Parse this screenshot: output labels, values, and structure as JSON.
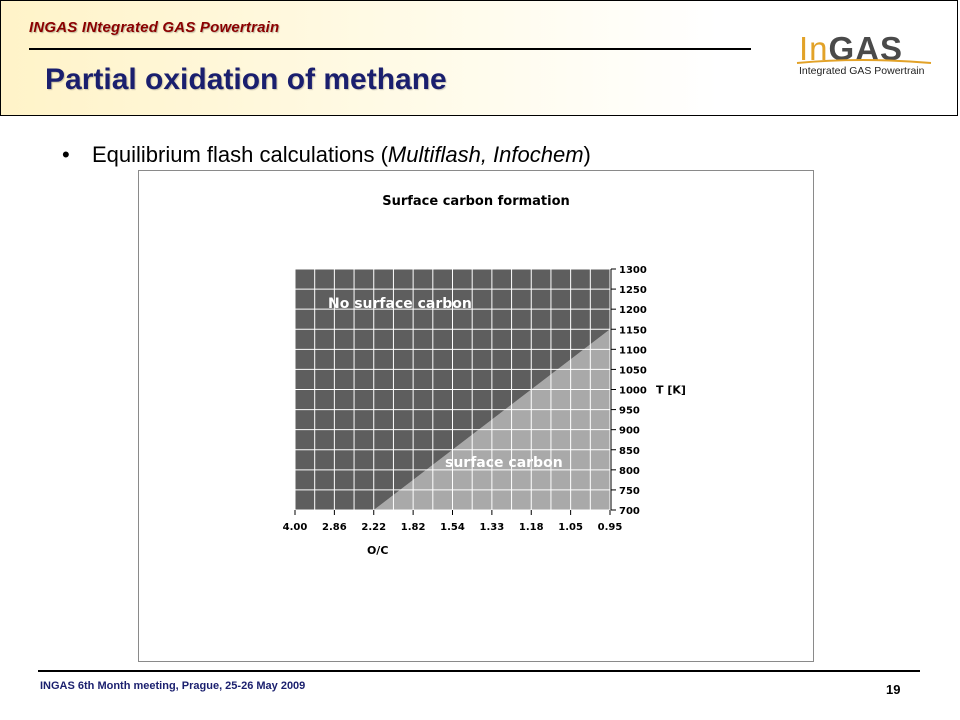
{
  "header": {
    "brand_tag": "INGAS INtegrated GAS Powertrain",
    "title": "Partial oxidation of methane",
    "logo_in": "In",
    "logo_gas": "GAS",
    "logo_subtitle": "Integrated GAS Powertrain"
  },
  "bullet": {
    "symbol": "•",
    "text_prefix": "Equilibrium flash calculations (",
    "text_italic": "Multiflash, Infochem",
    "text_suffix": ")"
  },
  "chart_data": {
    "type": "heatmap",
    "title": "Surface carbon formation",
    "xlabel": "O/C",
    "ylabel": "T [K]",
    "x_tick_labels": [
      "4.00",
      "2.86",
      "2.22",
      "1.82",
      "1.54",
      "1.33",
      "1.18",
      "1.05",
      "0.95"
    ],
    "y_tick_labels": [
      "700",
      "750",
      "800",
      "850",
      "900",
      "950",
      "1000",
      "1050",
      "1100",
      "1150",
      "1200",
      "1250",
      "1300"
    ],
    "ylim": [
      700,
      1300
    ],
    "region_labels": {
      "upper": "No surface carbon",
      "lower": "surface carbon"
    },
    "boundary": [
      {
        "o_c": "2.22",
        "T": 700
      },
      {
        "o_c": "0.95",
        "T": 1150
      }
    ],
    "grid": true,
    "colors": {
      "no_surface_carbon": "#5e5e5e",
      "surface_carbon": "#a9a9a9",
      "grid": "#ffffff"
    }
  },
  "footer": {
    "meeting": "INGAS 6th Month meeting, Prague, 25-26 May 2009",
    "page": "19"
  }
}
